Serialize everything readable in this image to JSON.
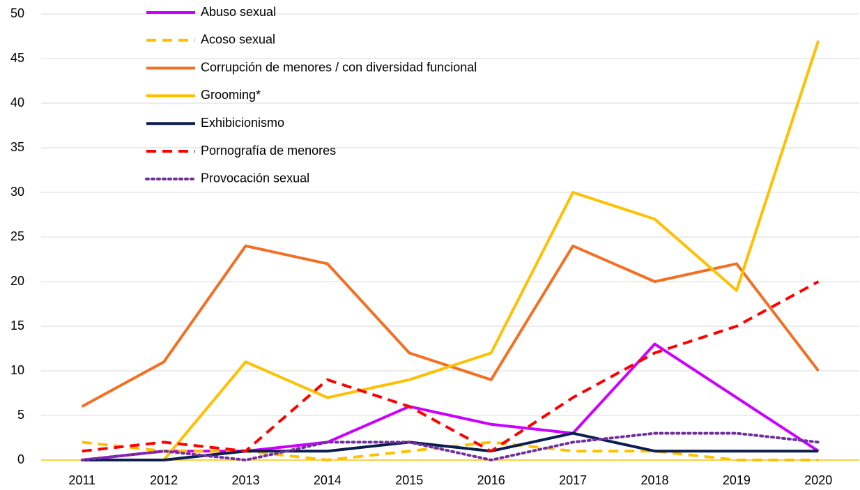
{
  "chart_data": {
    "type": "line",
    "categories": [
      "2011",
      "2012",
      "2013",
      "2014",
      "2015",
      "2016",
      "2017",
      "2018",
      "2019",
      "2020"
    ],
    "series": [
      {
        "name": "Abuso sexual",
        "color": "#cc00ff",
        "dash": "solid",
        "values": [
          0,
          1,
          1,
          2,
          6,
          4,
          3,
          13,
          7,
          1
        ]
      },
      {
        "name": "Acoso sexual",
        "color": "#ffc000",
        "dash": "dashed",
        "values": [
          2,
          1,
          1,
          0,
          1,
          2,
          1,
          1,
          0,
          0
        ]
      },
      {
        "name": "Corrupción de menores / con diversidad funcional",
        "color": "#f36f21",
        "dash": "solid",
        "values": [
          6,
          11,
          24,
          22,
          12,
          9,
          24,
          20,
          22,
          10
        ]
      },
      {
        "name": "Grooming*",
        "color": "#ffc000",
        "dash": "solid",
        "values": [
          null,
          0,
          11,
          7,
          9,
          12,
          30,
          27,
          19,
          47
        ]
      },
      {
        "name": "Exhibicionismo",
        "color": "#0c1d4f",
        "dash": "solid",
        "values": [
          0,
          0,
          1,
          1,
          2,
          1,
          3,
          1,
          1,
          1
        ]
      },
      {
        "name": "Pornografía de menores",
        "color": "#ff0000",
        "dash": "dashed",
        "values": [
          1,
          2,
          1,
          9,
          6,
          1,
          7,
          12,
          15,
          20
        ]
      },
      {
        "name": "Provocación sexual",
        "color": "#7030a0",
        "dash": "dotted",
        "values": [
          0,
          1,
          0,
          2,
          2,
          0,
          2,
          3,
          3,
          2
        ]
      }
    ],
    "ylim": [
      0,
      50
    ],
    "yticks": [
      0,
      5,
      10,
      15,
      20,
      25,
      30,
      35,
      40,
      45,
      50
    ],
    "grid": true,
    "legend": "upper left"
  }
}
